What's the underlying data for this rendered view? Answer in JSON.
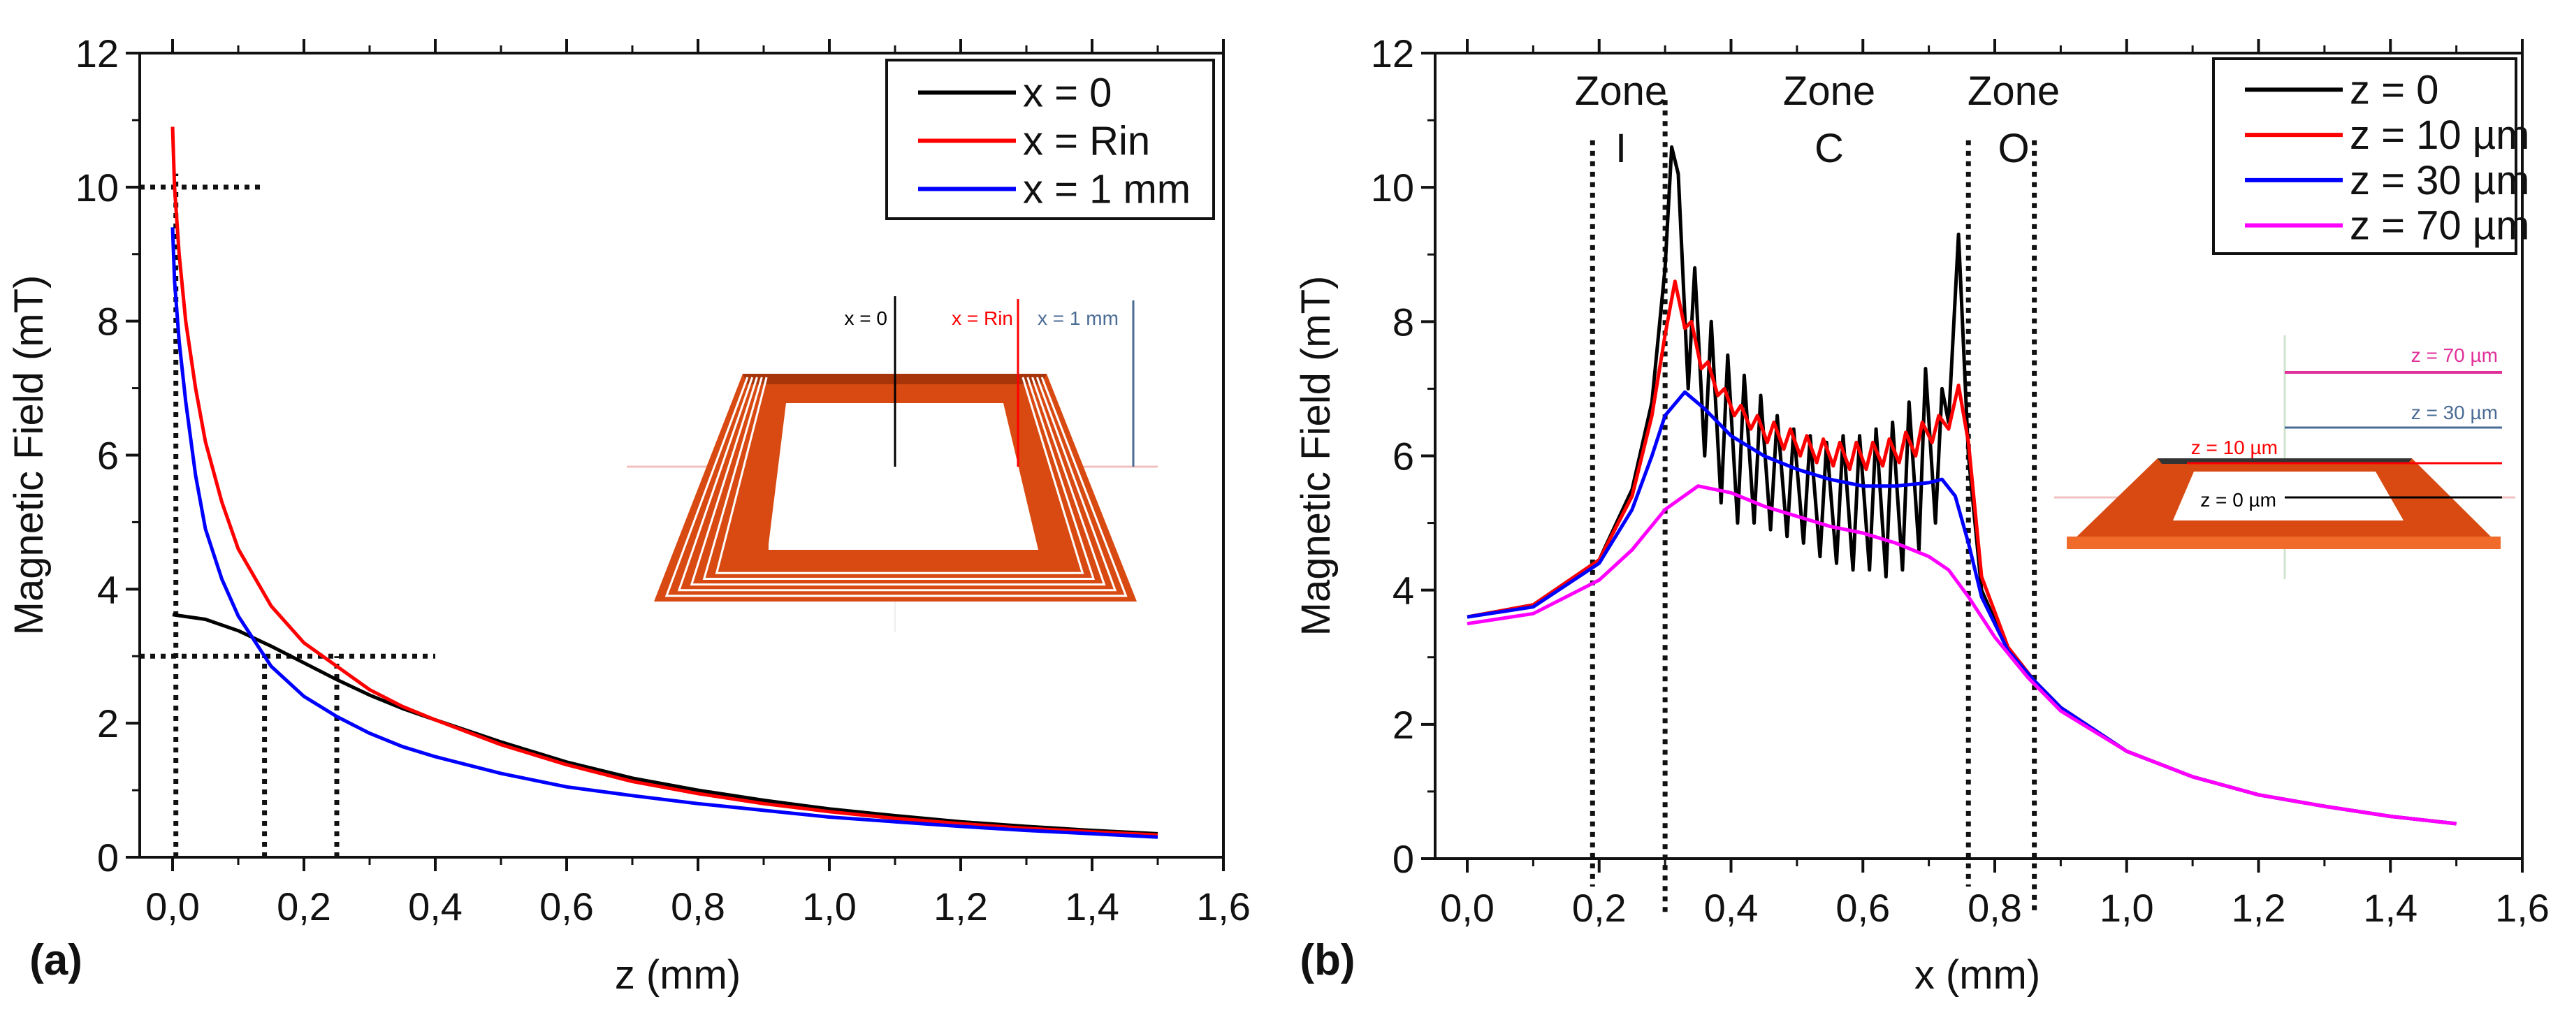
{
  "chart_data": [
    {
      "type": "line",
      "panel_label": "(a)",
      "xlabel": "z (mm)",
      "ylabel": "Magnetic Field (mT)",
      "xlim": [
        -0.05,
        1.6
      ],
      "ylim": [
        0,
        12
      ],
      "xticks": [
        "0,0",
        "0,2",
        "0,4",
        "0,6",
        "0,8",
        "1,0",
        "1,2",
        "1,4",
        "1,6"
      ],
      "xtick_values": [
        0,
        0.2,
        0.4,
        0.6,
        0.8,
        1.0,
        1.2,
        1.4,
        1.6
      ],
      "yticks": [
        "0",
        "2",
        "4",
        "6",
        "8",
        "10",
        "12"
      ],
      "ytick_values": [
        0,
        2,
        4,
        6,
        8,
        10,
        12
      ],
      "legend_position": "top-right",
      "series": [
        {
          "name": "x = 0",
          "color": "#000000",
          "x": [
            0,
            0.05,
            0.1,
            0.15,
            0.2,
            0.25,
            0.3,
            0.35,
            0.4,
            0.5,
            0.6,
            0.7,
            0.8,
            0.9,
            1.0,
            1.1,
            1.2,
            1.3,
            1.4,
            1.5
          ],
          "y": [
            3.62,
            3.55,
            3.38,
            3.15,
            2.9,
            2.65,
            2.42,
            2.22,
            2.05,
            1.72,
            1.42,
            1.18,
            1.0,
            0.85,
            0.72,
            0.62,
            0.53,
            0.46,
            0.4,
            0.35
          ]
        },
        {
          "name": "x = Rin",
          "color": "#ff0000",
          "x": [
            0,
            0.003,
            0.01,
            0.02,
            0.035,
            0.05,
            0.075,
            0.1,
            0.15,
            0.2,
            0.25,
            0.3,
            0.35,
            0.4,
            0.5,
            0.6,
            0.7,
            0.8,
            0.9,
            1.0,
            1.1,
            1.2,
            1.3,
            1.4,
            1.5
          ],
          "y": [
            10.9,
            10.0,
            9.0,
            8.0,
            7.0,
            6.2,
            5.3,
            4.6,
            3.75,
            3.2,
            2.85,
            2.5,
            2.25,
            2.05,
            1.68,
            1.38,
            1.13,
            0.95,
            0.8,
            0.68,
            0.58,
            0.5,
            0.43,
            0.38,
            0.33
          ]
        },
        {
          "name": "x = 1 mm",
          "color": "#0000ff",
          "x": [
            0,
            0.003,
            0.01,
            0.02,
            0.035,
            0.05,
            0.075,
            0.1,
            0.15,
            0.2,
            0.25,
            0.3,
            0.35,
            0.4,
            0.5,
            0.6,
            0.7,
            0.8,
            0.9,
            1.0,
            1.1,
            1.2,
            1.3,
            1.4,
            1.5
          ],
          "y": [
            9.4,
            8.6,
            7.7,
            6.8,
            5.7,
            4.9,
            4.15,
            3.6,
            2.85,
            2.4,
            2.1,
            1.85,
            1.65,
            1.5,
            1.25,
            1.05,
            0.92,
            0.8,
            0.7,
            0.6,
            0.53,
            0.46,
            0.4,
            0.35,
            0.3
          ]
        }
      ],
      "reference_lines": [
        {
          "orientation": "horizontal",
          "value": 10,
          "from": -0.05,
          "to": 0.14
        },
        {
          "orientation": "horizontal",
          "value": 3,
          "from": -0.05,
          "to": 0.4
        },
        {
          "orientation": "vertical",
          "value": 0.005,
          "from": 0,
          "to": 10.2
        },
        {
          "orientation": "vertical",
          "value": 0.14,
          "from": 0,
          "to": 3
        },
        {
          "orientation": "vertical",
          "value": 0.25,
          "from": 0,
          "to": 3
        }
      ],
      "inset": {
        "labels": [
          "x = 0",
          "x = Rin",
          "x = 1 mm"
        ],
        "colors": [
          "#000000",
          "#ff0000",
          "#4a6b94"
        ],
        "coil_color": "#d84a12"
      }
    },
    {
      "type": "line",
      "panel_label": "(b)",
      "xlabel": "x (mm)",
      "ylabel": "Magnetic Field (mT)",
      "xlim": [
        -0.05,
        1.6
      ],
      "ylim": [
        0,
        12
      ],
      "xticks": [
        "0,0",
        "0,2",
        "0,4",
        "0,6",
        "0,8",
        "1,0",
        "1,2",
        "1,4",
        "1,6"
      ],
      "xtick_values": [
        0,
        0.2,
        0.4,
        0.6,
        0.8,
        1.0,
        1.2,
        1.4,
        1.6
      ],
      "yticks": [
        "0",
        "2",
        "4",
        "6",
        "8",
        "10",
        "12"
      ],
      "ytick_values": [
        0,
        2,
        4,
        6,
        8,
        10,
        12
      ],
      "legend_position": "top-right",
      "zones": [
        {
          "title": "Zone",
          "letter": "I",
          "center": 0.235
        },
        {
          "title": "Zone",
          "letter": "C",
          "center": 0.55
        },
        {
          "title": "Zone",
          "letter": "O",
          "center": 0.83
        }
      ],
      "zone_boundaries": [
        0.19,
        0.3,
        0.76,
        0.86
      ],
      "series": [
        {
          "name": "z = 0",
          "color": "#000000",
          "x": [
            0,
            0.1,
            0.2,
            0.25,
            0.28,
            0.3,
            0.31,
            0.32,
            0.335,
            0.345,
            0.36,
            0.37,
            0.385,
            0.395,
            0.41,
            0.42,
            0.435,
            0.445,
            0.46,
            0.47,
            0.485,
            0.495,
            0.51,
            0.52,
            0.535,
            0.545,
            0.56,
            0.57,
            0.585,
            0.595,
            0.61,
            0.62,
            0.635,
            0.645,
            0.66,
            0.67,
            0.685,
            0.695,
            0.71,
            0.72,
            0.73,
            0.745,
            0.76,
            0.78,
            0.82,
            0.86,
            0.9,
            1.0,
            1.1,
            1.2,
            1.3,
            1.4,
            1.5
          ],
          "y": [
            3.6,
            3.78,
            4.45,
            5.5,
            6.8,
            8.8,
            10.6,
            10.2,
            7.0,
            8.8,
            6.0,
            8.0,
            5.3,
            7.5,
            5.0,
            7.2,
            5.0,
            6.9,
            4.9,
            6.6,
            4.8,
            6.4,
            4.7,
            6.3,
            4.5,
            6.2,
            4.4,
            6.3,
            4.3,
            6.3,
            4.3,
            6.4,
            4.2,
            6.5,
            4.3,
            6.8,
            4.6,
            7.3,
            5.0,
            7.0,
            6.5,
            9.3,
            6.0,
            4.0,
            3.1,
            2.65,
            2.25,
            1.6,
            1.22,
            0.95,
            0.78,
            0.63,
            0.52
          ]
        },
        {
          "name": "z = 10 µm",
          "color": "#ff0000",
          "x": [
            0,
            0.1,
            0.2,
            0.25,
            0.28,
            0.3,
            0.315,
            0.33,
            0.34,
            0.355,
            0.365,
            0.38,
            0.39,
            0.405,
            0.415,
            0.43,
            0.44,
            0.455,
            0.465,
            0.48,
            0.49,
            0.505,
            0.515,
            0.53,
            0.54,
            0.555,
            0.565,
            0.58,
            0.59,
            0.605,
            0.615,
            0.63,
            0.64,
            0.655,
            0.665,
            0.68,
            0.69,
            0.705,
            0.715,
            0.73,
            0.745,
            0.76,
            0.78,
            0.82,
            0.86,
            0.9,
            1.0,
            1.1,
            1.2,
            1.3,
            1.4,
            1.5
          ],
          "y": [
            3.6,
            3.78,
            4.45,
            5.4,
            6.6,
            7.8,
            8.6,
            7.9,
            8.0,
            7.3,
            7.4,
            6.9,
            7.0,
            6.6,
            6.75,
            6.4,
            6.6,
            6.2,
            6.5,
            6.1,
            6.4,
            6.0,
            6.3,
            5.9,
            6.25,
            5.85,
            6.2,
            5.8,
            6.2,
            5.8,
            6.2,
            5.85,
            6.25,
            5.9,
            6.35,
            6.0,
            6.5,
            6.2,
            6.6,
            6.4,
            7.05,
            6.2,
            4.2,
            3.15,
            2.65,
            2.25,
            1.6,
            1.22,
            0.95,
            0.78,
            0.63,
            0.52
          ]
        },
        {
          "name": "z = 30 µm",
          "color": "#0000ff",
          "x": [
            0,
            0.1,
            0.2,
            0.25,
            0.28,
            0.3,
            0.33,
            0.36,
            0.4,
            0.45,
            0.5,
            0.55,
            0.6,
            0.65,
            0.7,
            0.72,
            0.74,
            0.76,
            0.78,
            0.82,
            0.86,
            0.9,
            1.0,
            1.1,
            1.2,
            1.3,
            1.4,
            1.5
          ],
          "y": [
            3.6,
            3.75,
            4.4,
            5.2,
            6.0,
            6.6,
            6.95,
            6.7,
            6.3,
            6.0,
            5.8,
            5.65,
            5.55,
            5.55,
            5.6,
            5.65,
            5.4,
            4.7,
            3.9,
            3.1,
            2.65,
            2.25,
            1.6,
            1.22,
            0.95,
            0.78,
            0.63,
            0.52
          ]
        },
        {
          "name": "z = 70 µm",
          "color": "#ff00ff",
          "x": [
            0,
            0.1,
            0.2,
            0.25,
            0.3,
            0.35,
            0.4,
            0.45,
            0.5,
            0.55,
            0.6,
            0.65,
            0.7,
            0.73,
            0.76,
            0.8,
            0.85,
            0.9,
            1.0,
            1.1,
            1.2,
            1.3,
            1.4,
            1.5
          ],
          "y": [
            3.5,
            3.65,
            4.15,
            4.6,
            5.2,
            5.55,
            5.45,
            5.25,
            5.1,
            4.95,
            4.85,
            4.7,
            4.5,
            4.3,
            3.9,
            3.3,
            2.7,
            2.2,
            1.6,
            1.22,
            0.95,
            0.78,
            0.63,
            0.52
          ]
        }
      ],
      "inset": {
        "labels": [
          "z = 70 µm",
          "z = 30 µm",
          "z = 10 µm",
          "z = 0 µm"
        ],
        "colors": [
          "#e0309a",
          "#4a6b94",
          "#ff0000",
          "#000000"
        ],
        "coil_color": "#d84a12"
      }
    }
  ]
}
